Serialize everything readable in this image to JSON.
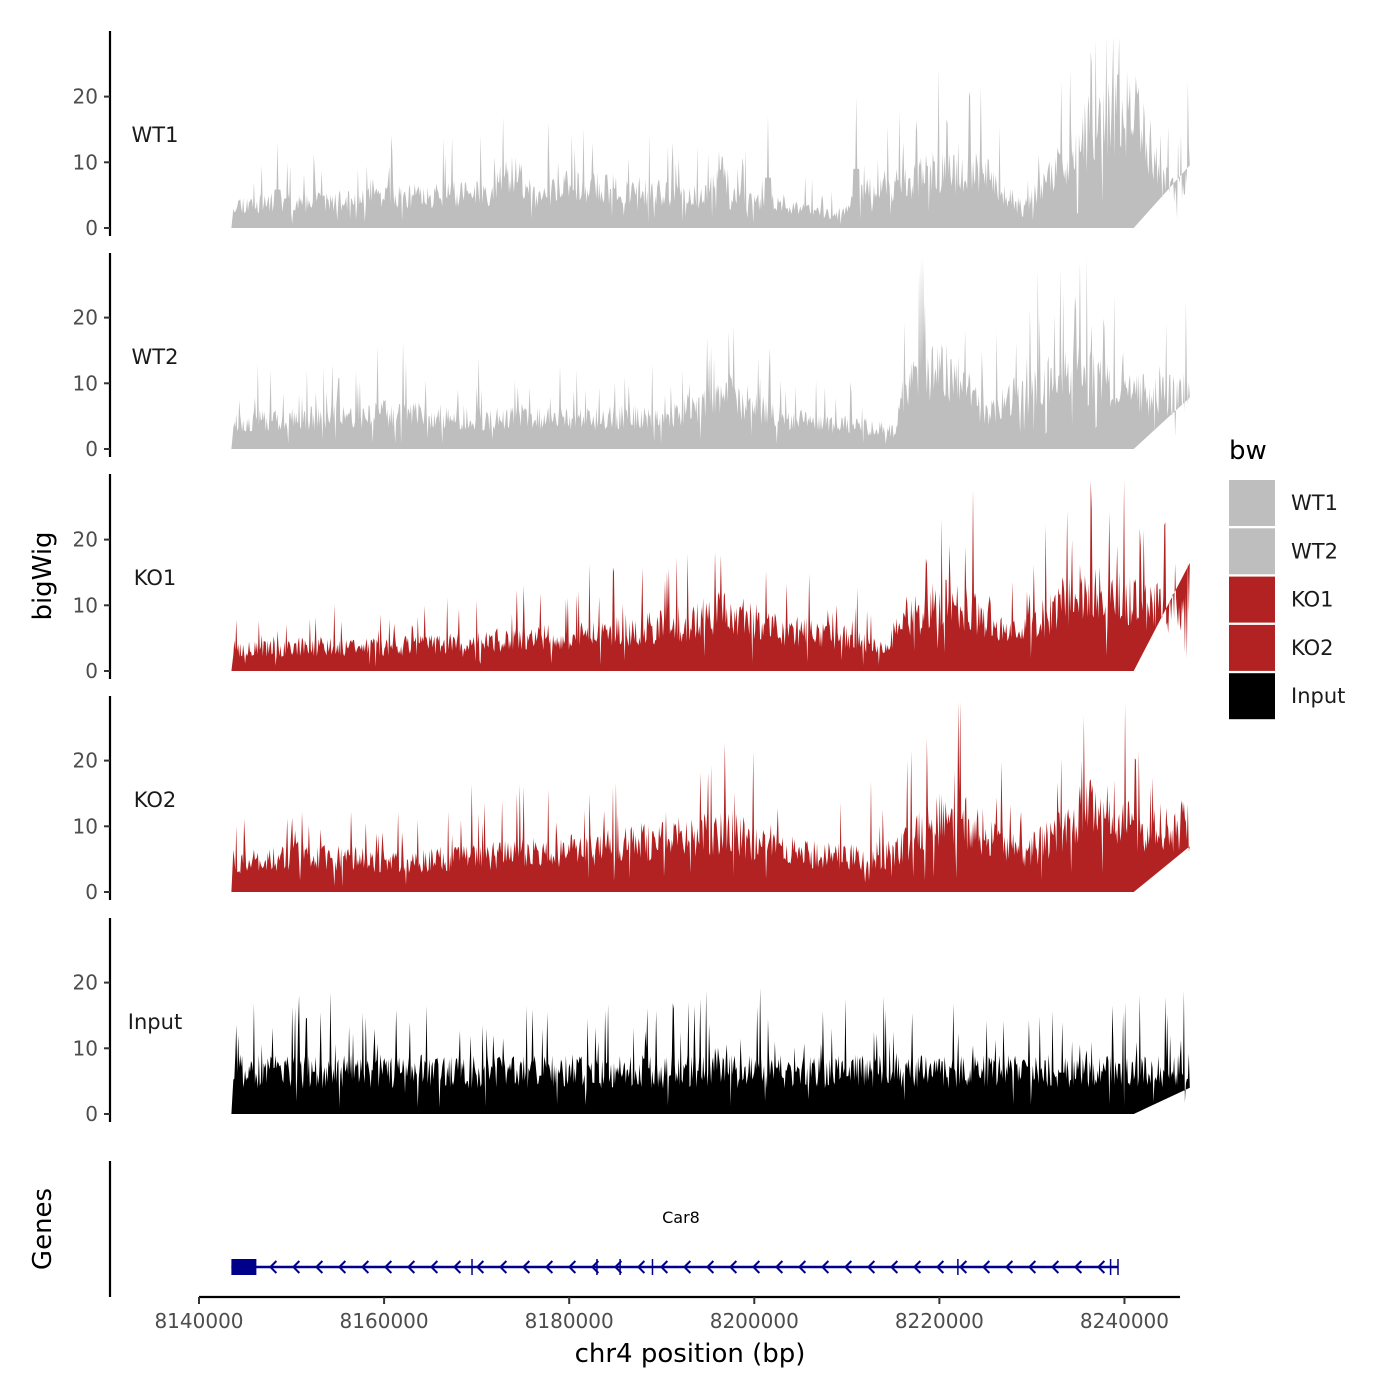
{
  "chart_data": {
    "type": "area",
    "title": "",
    "ylabel": "bigWig",
    "xlabel": "chr4 position (bp)",
    "x_range": [
      8143500,
      8241000
    ],
    "xlim": [
      8140000,
      8246000
    ],
    "ylim": [
      0,
      30
    ],
    "yticks": [
      "0",
      "10",
      "20"
    ],
    "xticks": [
      {
        "value": 8140000,
        "label": "8140000"
      },
      {
        "value": 8160000,
        "label": "8160000"
      },
      {
        "value": 8180000,
        "label": "8180000"
      },
      {
        "value": 8200000,
        "label": "8200000"
      },
      {
        "value": 8220000,
        "label": "8220000"
      },
      {
        "value": 8240000,
        "label": "8240000"
      }
    ],
    "legend": {
      "title": "bw",
      "position": "right",
      "items": [
        {
          "label": "WT1",
          "color": "#bebebe"
        },
        {
          "label": "WT2",
          "color": "#bebebe"
        },
        {
          "label": "KO1",
          "color": "#b22222"
        },
        {
          "label": "KO2",
          "color": "#b22222"
        },
        {
          "label": "Input",
          "color": "#000000"
        }
      ]
    },
    "series": [
      {
        "name": "WT1",
        "color": "#bebebe",
        "seed": 11,
        "profile": [
          [
            0,
            4
          ],
          [
            10,
            4
          ],
          [
            30,
            6
          ],
          [
            32,
            10
          ],
          [
            34,
            5
          ],
          [
            38,
            7
          ],
          [
            52,
            5
          ],
          [
            53,
            11
          ],
          [
            54,
            5
          ],
          [
            60,
            4
          ],
          [
            65,
            2
          ],
          [
            68,
            6
          ],
          [
            75,
            9
          ],
          [
            80,
            9
          ],
          [
            84,
            3
          ],
          [
            92,
            18
          ],
          [
            96,
            19
          ],
          [
            98,
            8
          ],
          [
            100,
            6
          ],
          [
            102,
            16
          ],
          [
            104,
            9
          ],
          [
            106,
            8
          ]
        ],
        "annotated_peaks": [
          [
            1.3,
            12
          ],
          [
            8,
            13
          ],
          [
            9,
            10
          ],
          [
            58,
            17
          ],
          [
            67,
            20
          ]
        ]
      },
      {
        "name": "WT2",
        "color": "#bebebe",
        "seed": 23,
        "profile": [
          [
            0,
            4
          ],
          [
            10,
            5
          ],
          [
            20,
            6
          ],
          [
            30,
            5
          ],
          [
            40,
            5
          ],
          [
            50,
            6
          ],
          [
            54,
            9
          ],
          [
            56,
            7
          ],
          [
            60,
            5
          ],
          [
            66,
            4
          ],
          [
            71,
            3
          ],
          [
            72,
            11
          ],
          [
            75,
            13
          ],
          [
            78,
            12
          ],
          [
            80,
            6
          ],
          [
            86,
            11
          ],
          [
            90,
            12
          ],
          [
            96,
            9
          ],
          [
            100,
            9
          ],
          [
            106,
            8
          ]
        ],
        "annotated_peaks": [
          [
            50,
            10
          ],
          [
            77,
            13
          ]
        ]
      },
      {
        "name": "KO1",
        "color": "#b22222",
        "seed": 37,
        "profile": [
          [
            0,
            3
          ],
          [
            10,
            4
          ],
          [
            20,
            4
          ],
          [
            30,
            5
          ],
          [
            40,
            6
          ],
          [
            50,
            8
          ],
          [
            54,
            10
          ],
          [
            58,
            7
          ],
          [
            64,
            6
          ],
          [
            70,
            4
          ],
          [
            72,
            9
          ],
          [
            76,
            11
          ],
          [
            80,
            9
          ],
          [
            84,
            6
          ],
          [
            88,
            11
          ],
          [
            90,
            13
          ],
          [
            96,
            11
          ],
          [
            100,
            10
          ],
          [
            106,
            8
          ]
        ],
        "annotated_peaks": [
          [
            53,
            12
          ],
          [
            89,
            20
          ]
        ]
      },
      {
        "name": "KO2",
        "color": "#b22222",
        "seed": 53,
        "profile": [
          [
            0,
            4
          ],
          [
            10,
            6
          ],
          [
            20,
            5
          ],
          [
            30,
            6
          ],
          [
            40,
            7
          ],
          [
            50,
            9
          ],
          [
            54,
            10
          ],
          [
            58,
            7
          ],
          [
            64,
            6
          ],
          [
            70,
            6
          ],
          [
            72,
            8
          ],
          [
            76,
            13
          ],
          [
            80,
            10
          ],
          [
            84,
            6
          ],
          [
            88,
            10
          ],
          [
            92,
            15
          ],
          [
            96,
            10
          ],
          [
            100,
            11
          ],
          [
            106,
            9
          ]
        ],
        "annotated_peaks": [
          [
            1.8,
            13
          ],
          [
            90,
            20
          ],
          [
            97,
            16
          ]
        ]
      },
      {
        "name": "Input",
        "color": "#000000",
        "seed": 71,
        "profile": [
          [
            0,
            7
          ],
          [
            10,
            7
          ],
          [
            20,
            7
          ],
          [
            30,
            7
          ],
          [
            40,
            7
          ],
          [
            50,
            7
          ],
          [
            60,
            7
          ],
          [
            70,
            7
          ],
          [
            80,
            7
          ],
          [
            90,
            7
          ],
          [
            106,
            7
          ]
        ],
        "annotated_peaks": [
          [
            4,
            12
          ],
          [
            35,
            13
          ],
          [
            88,
            14
          ],
          [
            99,
            12
          ]
        ]
      }
    ],
    "genes_track": {
      "label": "Genes",
      "gene_name": "Car8",
      "strand": "-",
      "color": "#00008b",
      "start": 8143500,
      "end": 8239300,
      "exon_blocks": [
        [
          8143500,
          8146200
        ]
      ],
      "exon_ticks": [
        8169500,
        8183000,
        8185500,
        8189000,
        8222000,
        8238500
      ]
    }
  }
}
